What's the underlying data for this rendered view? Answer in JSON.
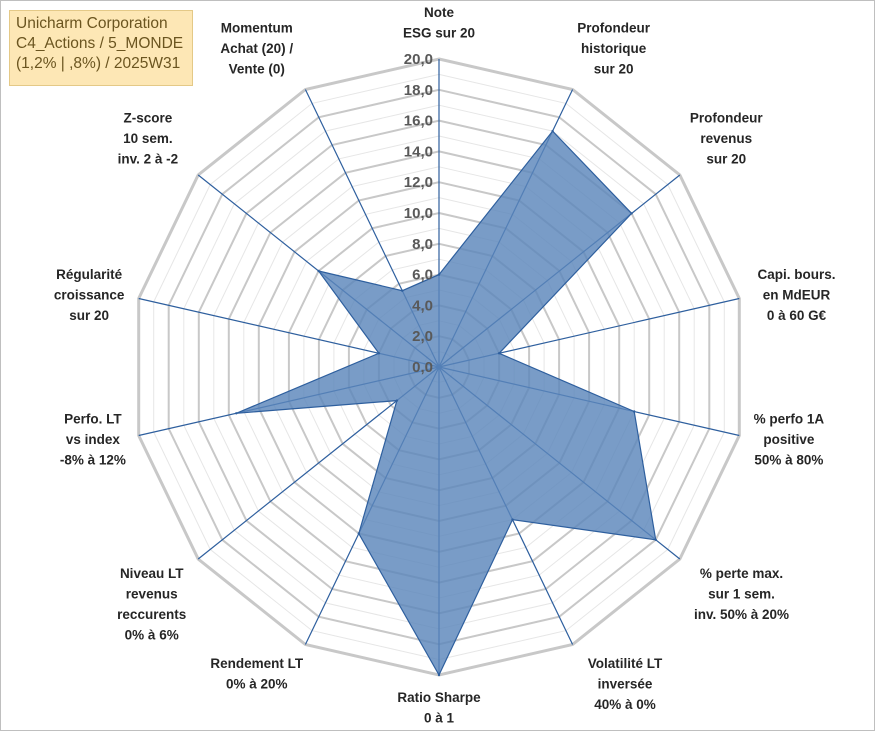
{
  "title_box": {
    "lines": [
      "Unicharm Corporation",
      "C4_Actions / 5_MONDE",
      "(1,2% | ,8%) / 2025W31"
    ]
  },
  "colors": {
    "fill": "#5b86bb",
    "stroke": "#2e5f9e",
    "spoke": "#2e5f9e",
    "grid_major": "#c8c8c8",
    "grid_minor": "#e6e6e6",
    "title_bg": "#fde7b5"
  },
  "chart_data": {
    "type": "radar",
    "r_range": [
      0,
      20
    ],
    "tick_labels": [
      "0,0",
      "2,0",
      "4,0",
      "6,0",
      "8,0",
      "10,0",
      "12,0",
      "14,0",
      "16,0",
      "18,0",
      "20,0"
    ],
    "grid": true,
    "categories": [
      [
        "Note",
        "ESG sur 20"
      ],
      [
        "Profondeur",
        "historique",
        "sur 20"
      ],
      [
        "Profondeur",
        "revenus",
        "sur 20"
      ],
      [
        "Capi. bours.",
        "en MdEUR",
        "0 à 60 G€"
      ],
      [
        "% perfo 1A",
        "positive",
        "50% à 80%"
      ],
      [
        "% perte max.",
        "sur 1 sem.",
        "inv. 50% à 20%"
      ],
      [
        "Volatilité LT",
        "inversée",
        "40% à 0%"
      ],
      [
        "Ratio Sharpe",
        "0 à 1"
      ],
      [
        "Rendement LT",
        "0% à 20%"
      ],
      [
        "Niveau LT",
        "revenus",
        "reccurents",
        "0% à 6%"
      ],
      [
        "Perfo. LT",
        "vs index",
        "-8% à 12%"
      ],
      [
        "Régularité",
        "croissance",
        "sur 20"
      ],
      [
        "Z-score",
        "10 sem.",
        "inv. 2 à -2"
      ],
      [
        "Momentum",
        "Achat (20) /",
        "Vente (0)"
      ]
    ],
    "series": [
      {
        "values": [
          6.0,
          17.0,
          16.0,
          4.0,
          13.0,
          18.0,
          11.0,
          20.0,
          12.0,
          3.5,
          13.5,
          4.0,
          10.0,
          5.5
        ]
      }
    ]
  }
}
